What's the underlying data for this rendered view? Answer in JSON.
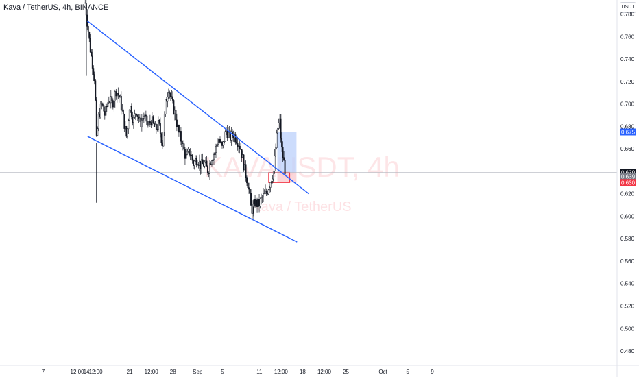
{
  "title": "Kava / TetherUS, 4h, BINANCE",
  "currency": "USDT",
  "watermark": {
    "symbol": "KAVAUSDT, 4h",
    "name": "Kava / TetherUS"
  },
  "chart_data": {
    "type": "candlestick",
    "symbol": "KAVAUSDT",
    "timeframe": "4h",
    "exchange": "BINANCE",
    "ylim": [
      0.47,
      0.79
    ],
    "y_ticks": [
      "0.780",
      "0.760",
      "0.740",
      "0.720",
      "0.700",
      "0.680",
      "0.660",
      "0.640",
      "0.620",
      "0.600",
      "0.580",
      "0.560",
      "0.540",
      "0.520",
      "0.500",
      "0.480"
    ],
    "x_ticks": [
      {
        "label": "7",
        "day": 7
      },
      {
        "label": "12:00",
        "day": 12.5
      },
      {
        "label": "14",
        "day": 14
      },
      {
        "label": "12:00",
        "day": 15.5
      },
      {
        "label": "21",
        "day": 21
      },
      {
        "label": "12:00",
        "day": 24.5
      },
      {
        "label": "28",
        "day": 28
      },
      {
        "label": "Sep",
        "day": 32
      },
      {
        "label": "5",
        "day": 36
      },
      {
        "label": "11",
        "day": 42
      },
      {
        "label": "12:00",
        "day": 45.5
      },
      {
        "label": "18",
        "day": 49
      },
      {
        "label": "12:00",
        "day": 52.5
      },
      {
        "label": "25",
        "day": 56
      },
      {
        "label": "Oct",
        "day": 62
      },
      {
        "label": "5",
        "day": 66
      },
      {
        "label": "9",
        "day": 70
      }
    ],
    "path": [
      [
        13.8,
        0.79
      ],
      [
        14.2,
        0.77
      ],
      [
        14.6,
        0.75
      ],
      [
        15.0,
        0.735
      ],
      [
        15.4,
        0.72
      ],
      [
        15.6,
        0.665
      ],
      [
        16.0,
        0.69
      ],
      [
        16.5,
        0.7
      ],
      [
        17.0,
        0.69
      ],
      [
        17.6,
        0.705
      ],
      [
        18.2,
        0.7
      ],
      [
        18.8,
        0.712
      ],
      [
        19.4,
        0.705
      ],
      [
        19.9,
        0.69
      ],
      [
        20.5,
        0.67
      ],
      [
        21.0,
        0.7
      ],
      [
        21.6,
        0.685
      ],
      [
        22.1,
        0.695
      ],
      [
        22.7,
        0.682
      ],
      [
        23.3,
        0.69
      ],
      [
        23.9,
        0.68
      ],
      [
        24.5,
        0.686
      ],
      [
        25.1,
        0.677
      ],
      [
        25.7,
        0.682
      ],
      [
        26.3,
        0.665
      ],
      [
        26.8,
        0.7
      ],
      [
        27.3,
        0.715
      ],
      [
        27.9,
        0.7
      ],
      [
        28.4,
        0.69
      ],
      [
        28.9,
        0.675
      ],
      [
        29.5,
        0.665
      ],
      [
        30.1,
        0.652
      ],
      [
        30.7,
        0.658
      ],
      [
        31.3,
        0.647
      ],
      [
        31.9,
        0.652
      ],
      [
        32.5,
        0.645
      ],
      [
        33.1,
        0.647
      ],
      [
        33.7,
        0.64
      ],
      [
        34.2,
        0.652
      ],
      [
        34.8,
        0.657
      ],
      [
        35.4,
        0.67
      ],
      [
        36.0,
        0.66
      ],
      [
        36.6,
        0.677
      ],
      [
        37.2,
        0.67
      ],
      [
        37.8,
        0.673
      ],
      [
        38.4,
        0.668
      ],
      [
        39.0,
        0.66
      ],
      [
        39.6,
        0.642
      ],
      [
        40.2,
        0.628
      ],
      [
        40.7,
        0.605
      ],
      [
        41.3,
        0.612
      ],
      [
        41.9,
        0.61
      ],
      [
        42.5,
        0.617
      ],
      [
        43.1,
        0.62
      ],
      [
        43.7,
        0.63
      ],
      [
        44.3,
        0.64
      ],
      [
        44.7,
        0.665
      ],
      [
        45.0,
        0.68
      ],
      [
        45.3,
        0.684
      ],
      [
        45.6,
        0.66
      ],
      [
        45.9,
        0.65
      ],
      [
        46.2,
        0.639
      ]
    ],
    "spikes": [
      {
        "day": 15.6,
        "low": 0.612
      },
      {
        "day": 14.0,
        "low": 0.725
      },
      {
        "day": 41.0,
        "low": 0.6
      },
      {
        "day": 45.5,
        "high": 0.691
      }
    ],
    "trendlines": [
      {
        "name": "upper",
        "from": {
          "day": 14.1,
          "price": 0.774
        },
        "to": {
          "day": 50.0,
          "price": 0.62
        }
      },
      {
        "name": "lower",
        "from": {
          "day": 14.2,
          "price": 0.671
        },
        "to": {
          "day": 48.1,
          "price": 0.577
        }
      }
    ],
    "position": {
      "type": "long",
      "from_day": 44.9,
      "to_day": 48.0,
      "entry": 0.639,
      "target": 0.675,
      "stop": 0.63
    },
    "price_tags": [
      {
        "price": 0.675,
        "label": "0.675",
        "bg": "#2962ff"
      },
      {
        "price": 0.639,
        "label": "0.639",
        "sub": "17:02",
        "bg": "#131722"
      },
      {
        "price": 0.6355,
        "label": "0.639",
        "bg": "#787b86"
      },
      {
        "price": 0.63,
        "label": "0.630",
        "bg": "#f23645"
      }
    ]
  },
  "colors": {
    "trendline": "#2962ff",
    "target_zone": "#bbd0fb",
    "stop_zone": "#f8c8cd",
    "stop_box": "#f23645",
    "candles": "#131722",
    "crosshair": "#b2b5be"
  }
}
